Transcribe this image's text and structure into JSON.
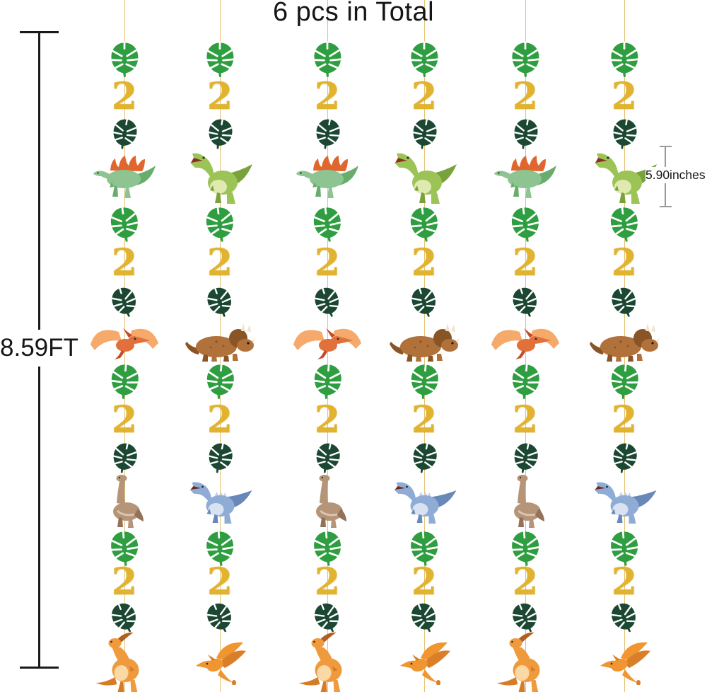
{
  "title": "6 pcs in Total",
  "measurements": {
    "total_height": "8.59FT",
    "item_height": "5.90inches"
  },
  "garland": {
    "strand_count": 6,
    "number_label": "2",
    "segment_pattern": [
      "green-leaf",
      "number-2",
      "dark-leaf",
      "dinosaur"
    ],
    "rows": [
      {
        "odd": "spinosaurus",
        "even": "t-rex"
      },
      {
        "odd": "pteranodon",
        "even": "triceratops"
      },
      {
        "odd": "brachiosaurus",
        "even": "blue-raptor"
      },
      {
        "odd": "parasaurolophus",
        "even": "orange-pterodactyl"
      }
    ]
  },
  "colors": {
    "background": "#ffffff",
    "text": "#161616",
    "ruler_dark": "#1a1a1a",
    "ruler_light": "#9a9a9a",
    "string": "#e5c172",
    "leaf_green": "#2f9e41",
    "leaf_dark": "#1b4733",
    "gold": "#e2b32e",
    "spinosaurus_green": "#8ec491",
    "spinosaurus_sail": "#e0662e",
    "trex_green": "#9cc355",
    "pteranodon_orange": "#f5a96b",
    "triceratops_brown": "#b0713a",
    "brachiosaurus_tan": "#b59477",
    "raptor_blue": "#8facd6",
    "parasaur_orange": "#f09a3e",
    "pterodactyl_orange": "#f0952f"
  }
}
